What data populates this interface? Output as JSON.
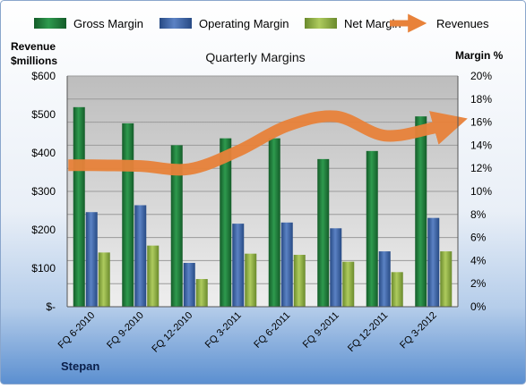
{
  "chart_data": {
    "type": "bar",
    "title": "Quarterly Margins",
    "company_label": "Stepan",
    "categories": [
      "FQ 6-2010",
      "FQ 9-2010",
      "FQ 12-2010",
      "FQ 3-2011",
      "FQ 6-2011",
      "FQ 9-2011",
      "FQ 12-2011",
      "FQ 3-2012"
    ],
    "y_left": {
      "label_line1": "Revenue",
      "label_line2": "$millions",
      "ylim": [
        0,
        600
      ],
      "ticks": [
        0,
        100,
        200,
        300,
        400,
        500,
        600
      ],
      "tick_labels": [
        "$-",
        "$100",
        "$200",
        "$300",
        "$400",
        "$500",
        "$600"
      ]
    },
    "y_right": {
      "label": "Margin %",
      "ylim": [
        0,
        20
      ],
      "ticks": [
        0,
        2,
        4,
        6,
        8,
        10,
        12,
        14,
        16,
        18,
        20
      ],
      "tick_labels": [
        "0%",
        "2%",
        "4%",
        "6%",
        "8%",
        "10%",
        "12%",
        "14%",
        "16%",
        "18%",
        "20%"
      ]
    },
    "series": [
      {
        "name": "Gross Margin",
        "axis": "right",
        "kind": "bar",
        "color": "#1E7B3A",
        "values": [
          17.3,
          15.9,
          14.0,
          14.6,
          14.6,
          12.8,
          13.5,
          16.5
        ]
      },
      {
        "name": "Operating Margin",
        "axis": "right",
        "kind": "bar",
        "color": "#3A63A8",
        "values": [
          8.2,
          8.8,
          3.8,
          7.2,
          7.3,
          6.8,
          4.8,
          7.7
        ]
      },
      {
        "name": "Net Margin",
        "axis": "right",
        "kind": "bar",
        "color": "#8DB043",
        "values": [
          4.7,
          5.3,
          2.4,
          4.6,
          4.5,
          3.9,
          3.0,
          4.8
        ]
      },
      {
        "name": "Revenues",
        "axis": "left",
        "kind": "line",
        "color": "#E8823A",
        "values": [
          368,
          366,
          358,
          405,
          470,
          495,
          445,
          465
        ]
      }
    ],
    "legend_position": "top",
    "grid": true
  }
}
